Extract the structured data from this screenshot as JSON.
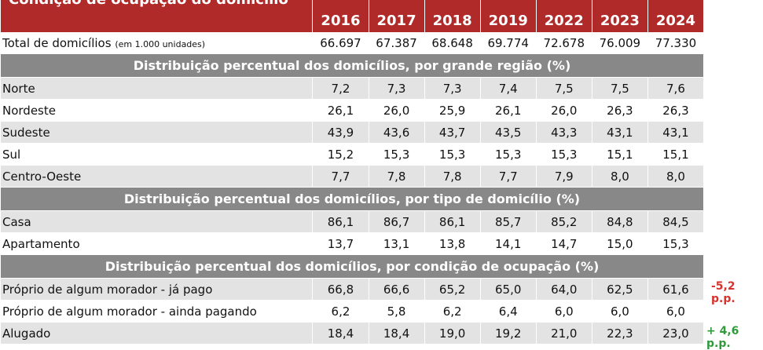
{
  "table": {
    "title": "Condição de ocupação do domicílio",
    "years": [
      "2016",
      "2017",
      "2018",
      "2019",
      "2022",
      "2023",
      "2024"
    ],
    "total": {
      "label": "Total de domicílios",
      "unit": "(em 1.000 unidades)",
      "values": [
        "66.697",
        "67.387",
        "68.648",
        "69.774",
        "72.678",
        "76.009",
        "77.330"
      ]
    },
    "sections": [
      {
        "title": "Distribuição percentual dos domicílios, por grande região (%)",
        "rows": [
          {
            "label": "Norte",
            "values": [
              "7,2",
              "7,3",
              "7,3",
              "7,4",
              "7,5",
              "7,5",
              "7,6"
            ]
          },
          {
            "label": "Nordeste",
            "values": [
              "26,1",
              "26,0",
              "25,9",
              "26,1",
              "26,0",
              "26,3",
              "26,3"
            ]
          },
          {
            "label": "Sudeste",
            "values": [
              "43,9",
              "43,6",
              "43,7",
              "43,5",
              "43,3",
              "43,1",
              "43,1"
            ]
          },
          {
            "label": "Sul",
            "values": [
              "15,2",
              "15,3",
              "15,3",
              "15,3",
              "15,3",
              "15,1",
              "15,1"
            ]
          },
          {
            "label": "Centro-Oeste",
            "values": [
              "7,7",
              "7,8",
              "7,8",
              "7,7",
              "7,9",
              "8,0",
              "8,0"
            ]
          }
        ]
      },
      {
        "title": "Distribuição percentual dos domicílios, por tipo de domicílio (%)",
        "rows": [
          {
            "label": "Casa",
            "values": [
              "86,1",
              "86,7",
              "86,1",
              "85,7",
              "85,2",
              "84,8",
              "84,5"
            ]
          },
          {
            "label": "Apartamento",
            "values": [
              "13,7",
              "13,1",
              "13,8",
              "14,1",
              "14,7",
              "15,0",
              "15,3"
            ]
          }
        ]
      },
      {
        "title": "Distribuição percentual dos domicílios, por condição de ocupação (%)",
        "rows": [
          {
            "label": "Próprio de algum morador - já pago",
            "values": [
              "66,8",
              "66,6",
              "65,2",
              "65,0",
              "64,0",
              "62,5",
              "61,6"
            ]
          },
          {
            "label": "Próprio de algum morador - ainda pagando",
            "values": [
              "6,2",
              "5,8",
              "6,2",
              "6,4",
              "6,0",
              "6,0",
              "6,0"
            ]
          },
          {
            "label": "Alugado",
            "values": [
              "18,4",
              "18,4",
              "19,0",
              "19,2",
              "21,0",
              "22,3",
              "23,0"
            ]
          }
        ]
      }
    ]
  },
  "notes": {
    "owned_paid_change": "-5,2 p.p.",
    "rented_change": "+ 4,6 p.p."
  },
  "colors": {
    "header": "#b02a2a",
    "section": "#888888",
    "stripe": "#e3e3e3",
    "negative": "#d8322c",
    "positive": "#2f9a3a"
  }
}
